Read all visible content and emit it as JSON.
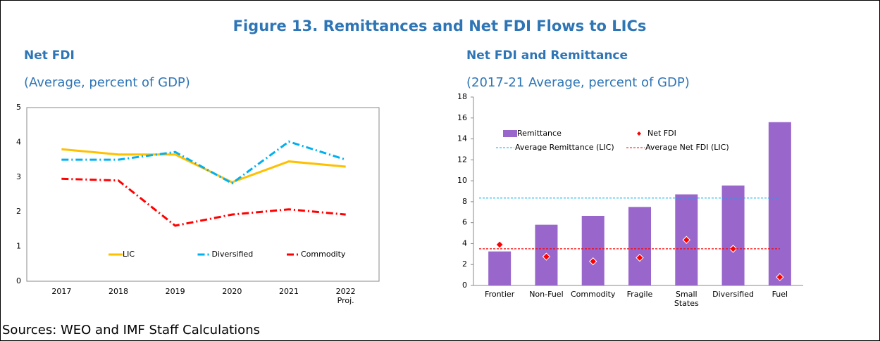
{
  "figure": {
    "title": "Figure 13. Remittances and Net FDI Flows to LICs",
    "source": "Sources: WEO and IMF Staff Calculations"
  },
  "chart_data": [
    {
      "type": "line",
      "title": "Net FDI",
      "subtitle": "(Average, percent of GDP)",
      "categories": [
        "2017",
        "2018",
        "2019",
        "2020",
        "2021",
        "2022\nProj."
      ],
      "series": [
        {
          "name": "LIC",
          "color": "#FFC000",
          "dash": "solid",
          "values": [
            3.8,
            3.65,
            3.65,
            2.85,
            3.45,
            3.3
          ]
        },
        {
          "name": "Diversified",
          "color": "#00B0F0",
          "dash": "dashdot",
          "values": [
            3.5,
            3.5,
            3.72,
            2.82,
            4.02,
            3.5
          ]
        },
        {
          "name": "Commodity",
          "color": "#FF0000",
          "dash": "dashdot",
          "values": [
            2.95,
            2.9,
            1.6,
            1.92,
            2.07,
            1.92
          ]
        }
      ],
      "ylim": [
        0,
        5
      ],
      "yticks": [
        0,
        1,
        2,
        3,
        4,
        5
      ],
      "grid": false,
      "legend": "lower center"
    },
    {
      "type": "bar",
      "title": "Net FDI and Remittance",
      "subtitle": "(2017-21 Average, percent of GDP)",
      "categories": [
        "Frontier",
        "Non-Fuel",
        "Commodity",
        "Fragile",
        "Small States",
        "Diversified",
        "Fuel"
      ],
      "series": [
        {
          "name": "Remittance",
          "type": "bar",
          "color": "#9966CC",
          "values": [
            3.25,
            5.8,
            6.65,
            7.5,
            8.7,
            9.55,
            15.6
          ]
        },
        {
          "name": "Net FDI",
          "type": "scatter",
          "color": "#FF0000",
          "values": [
            3.9,
            2.75,
            2.3,
            2.65,
            4.35,
            3.5,
            0.8
          ]
        },
        {
          "name": "Average Remittance (LIC)",
          "type": "hline",
          "color": "#00B0F0",
          "value": 8.35
        },
        {
          "name": "Average Net FDI (LIC)",
          "type": "hline",
          "color": "#FF0000",
          "value": 3.5
        }
      ],
      "ylim": [
        0,
        18
      ],
      "yticks": [
        0,
        2,
        4,
        6,
        8,
        10,
        12,
        14,
        16,
        18
      ],
      "grid": false,
      "legend": "upper left"
    }
  ]
}
